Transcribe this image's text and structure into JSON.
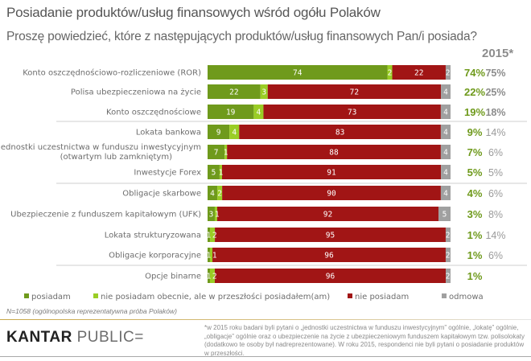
{
  "header": {
    "title": "Posiadanie produktów/usług finansowych wśród ogółu Polaków",
    "subtitle": "Proszę powiedzieć, które z następujących produktów/usług finansowych Pan/i posiada?",
    "comparison_year_label": "2015*"
  },
  "chart_data": {
    "type": "bar",
    "orientation": "horizontal",
    "stacked": true,
    "title": "Posiadanie produktów/usług finansowych wśród ogółu Polaków",
    "subtitle": "Proszę powiedzieć, które z następujących produktów/usług finansowych Pan/i posiada?",
    "xlabel": "",
    "ylabel": "",
    "xlim": [
      0,
      100
    ],
    "unit": "%",
    "grid": false,
    "legend_position": "bottom",
    "categories": [
      "Konto oszczędnościowo-rozliczeniowe (ROR)",
      "Polisa ubezpieczeniowa na życie",
      "Konto oszczędnościowe",
      "Lokata bankowa",
      "Jednostki uczestnictwa w funduszu inwestycyjnym (otwartym lub zamkniętym)",
      "Inwestycje Forex",
      "Obligacje skarbowe",
      "Ubezpieczenie z funduszem kapitałowym (UFK)",
      "Lokata strukturyzowana",
      "Obligacje korporacyjne",
      "Opcje binarne"
    ],
    "category_lines": [
      [
        "Konto oszczędnościowo-rozliczeniowe (ROR)"
      ],
      [
        "Polisa ubezpieczeniowa na życie"
      ],
      [
        "Konto oszczędnościowe"
      ],
      [
        "Lokata bankowa"
      ],
      [
        "Jednostki uczestnictwa w funduszu inwestycyjnym",
        "(otwartym lub zamkniętym)"
      ],
      [
        "Inwestycje Forex"
      ],
      [
        "Obligacje skarbowe"
      ],
      [
        "Ubezpieczenie z funduszem kapitałowym (UFK)"
      ],
      [
        "Lokata strukturyzowana"
      ],
      [
        "Obligacje korporacyjne"
      ],
      [
        "Opcje binarne"
      ]
    ],
    "series": [
      {
        "name": "posiadam",
        "color": "#6f9a1c",
        "values": [
          74,
          22,
          19,
          9,
          7,
          5,
          4,
          3,
          1,
          1,
          1
        ]
      },
      {
        "name": "nie posiadam obecnie, ale w przeszłości posiadałem(am)",
        "color": "#9acd25",
        "values": [
          2,
          3,
          4,
          4,
          1,
          1,
          2,
          1,
          2,
          1,
          2
        ]
      },
      {
        "name": "nie posiadam",
        "color": "#a11515",
        "values": [
          22,
          72,
          73,
          83,
          88,
          91,
          90,
          92,
          95,
          96,
          96
        ]
      },
      {
        "name": "odmowa",
        "color": "#a0a0a0",
        "values": [
          2,
          4,
          4,
          4,
          4,
          4,
          4,
          5,
          2,
          2,
          2
        ]
      }
    ],
    "bar_labels": [
      [
        "74",
        "2",
        "22",
        "2"
      ],
      [
        "22",
        "3",
        "72",
        "4"
      ],
      [
        "19",
        "4",
        "73",
        "4"
      ],
      [
        "9",
        "4",
        "83",
        "4"
      ],
      [
        "7",
        "1",
        "88",
        "4"
      ],
      [
        "5",
        "1",
        "91",
        "4"
      ],
      [
        "4",
        "2",
        "90",
        "4"
      ],
      [
        "3",
        "1",
        "92",
        "5"
      ],
      [
        "1",
        "2",
        "95",
        "2"
      ],
      [
        "1",
        "1",
        "96",
        "2"
      ],
      [
        "1",
        "2",
        "96",
        "2"
      ]
    ],
    "summary_current": [
      "74%",
      "22%",
      "19%",
      "9%",
      "7%",
      "5%",
      "4%",
      "3%",
      "1%",
      "1%",
      "1%"
    ],
    "summary_2015": [
      "75%",
      "25%",
      "18%",
      "14%",
      "6%",
      "5%",
      "6%",
      "8%",
      "14%",
      "6%",
      ""
    ],
    "summary_2015_emphasis": [
      true,
      true,
      true,
      false,
      false,
      false,
      false,
      false,
      false,
      false,
      false
    ],
    "group_dividers_after": [
      2,
      5,
      9
    ]
  },
  "legend": {
    "items": [
      {
        "label": "posiadam",
        "color": "#6f9a1c"
      },
      {
        "label": "nie posiadam obecnie, ale w przeszłości posiadałem(am)",
        "color": "#9acd25"
      },
      {
        "label": "nie posiadam",
        "color": "#a11515"
      },
      {
        "label": "odmowa",
        "color": "#a0a0a0"
      }
    ]
  },
  "sample_note": "N=1058 (ogólnopolska reprezentatywna próba Polaków)",
  "footer": {
    "logo_bold": "KANTAR",
    "logo_light": "PUBLIC=",
    "footnote": "*w 2015 roku badani byli pytani o „jednostki uczestnictwa w funduszu inwestycyjnym” ogólnie, „lokatę” ogólnie, „obligacje” ogólnie oraz o ubezpieczenie na życie z ubezpieczeniowym funduszem kapitałowym tzw. polisolokaty (dodatkowo te osoby był nadreprezentowane). W roku 2015, respondenci nie byli pytani o posiadanie produktów w przeszłości."
  }
}
